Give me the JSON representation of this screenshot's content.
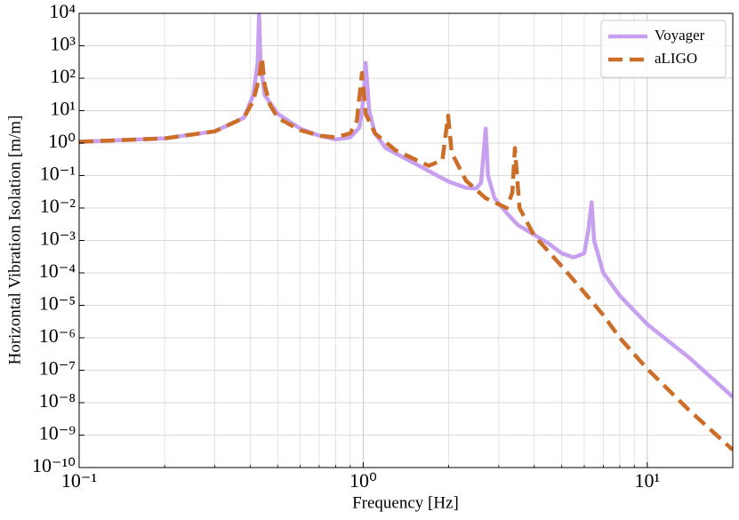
{
  "chart_data": {
    "type": "line",
    "xlabel": "Frequency [Hz]",
    "ylabel": "Horizontal Vibration Isolation [m/m]",
    "xscale": "log",
    "yscale": "log",
    "xlim": [
      0.1,
      20
    ],
    "ylim": [
      1e-10,
      10000
    ],
    "xticks": [
      {
        "value": 0.1,
        "label": "10⁻¹"
      },
      {
        "value": 1,
        "label": "10⁰"
      },
      {
        "value": 10,
        "label": "10¹"
      }
    ],
    "yticks": [
      {
        "value": 1e-10,
        "label": "10⁻¹⁰"
      },
      {
        "value": 1e-09,
        "label": "10⁻⁹"
      },
      {
        "value": 1e-08,
        "label": "10⁻⁸"
      },
      {
        "value": 1e-07,
        "label": "10⁻⁷"
      },
      {
        "value": 1e-06,
        "label": "10⁻⁶"
      },
      {
        "value": 1e-05,
        "label": "10⁻⁵"
      },
      {
        "value": 0.0001,
        "label": "10⁻⁴"
      },
      {
        "value": 0.001,
        "label": "10⁻³"
      },
      {
        "value": 0.01,
        "label": "10⁻²"
      },
      {
        "value": 0.1,
        "label": "10⁻¹"
      },
      {
        "value": 1,
        "label": "10⁰"
      },
      {
        "value": 10,
        "label": "10¹"
      },
      {
        "value": 100,
        "label": "10²"
      },
      {
        "value": 1000,
        "label": "10³"
      },
      {
        "value": 10000,
        "label": "10⁴"
      }
    ],
    "grid": true,
    "minor_grid_x": true,
    "legend": "upper right",
    "series": [
      {
        "name": "Voyager",
        "color": "#c8a0f0",
        "dashed": false,
        "x": [
          0.1,
          0.2,
          0.3,
          0.38,
          0.41,
          0.425,
          0.43,
          0.435,
          0.45,
          0.5,
          0.6,
          0.7,
          0.8,
          0.9,
          0.97,
          1.0,
          1.02,
          1.05,
          1.1,
          1.2,
          1.5,
          2.0,
          2.3,
          2.5,
          2.6,
          2.7,
          2.75,
          2.9,
          3.2,
          3.5,
          4,
          4.5,
          5,
          5.5,
          6,
          6.2,
          6.37,
          6.5,
          7,
          8,
          10,
          14,
          20
        ],
        "values": [
          1.1,
          1.4,
          2.3,
          6,
          30,
          300,
          10000,
          300,
          30,
          8,
          2.8,
          1.7,
          1.3,
          1.5,
          3,
          20,
          300,
          10,
          2,
          0.7,
          0.25,
          0.065,
          0.042,
          0.04,
          0.06,
          2.8,
          0.1,
          0.02,
          0.007,
          0.003,
          0.0015,
          0.0008,
          0.0004,
          0.0003,
          0.0004,
          0.002,
          0.015,
          0.001,
          0.0001,
          2e-05,
          2.6e-06,
          2.5e-07,
          1.5e-08
        ]
      },
      {
        "name": "aLIGO",
        "color": "#cd6e28",
        "dashed": true,
        "x": [
          0.1,
          0.2,
          0.3,
          0.38,
          0.41,
          0.43,
          0.44,
          0.45,
          0.47,
          0.5,
          0.6,
          0.7,
          0.8,
          0.9,
          0.95,
          0.99,
          1.02,
          1.1,
          1.3,
          1.7,
          1.9,
          1.99,
          2.05,
          2.3,
          2.7,
          3.2,
          3.35,
          3.42,
          3.55,
          4,
          5,
          6,
          7,
          8,
          10,
          14,
          20
        ],
        "values": [
          1.1,
          1.4,
          2.3,
          6,
          20,
          100,
          430,
          60,
          15,
          6,
          2.5,
          1.7,
          1.5,
          2,
          5,
          145,
          8,
          2,
          0.6,
          0.2,
          0.3,
          7,
          0.5,
          0.07,
          0.02,
          0.01,
          0.03,
          0.7,
          0.01,
          0.0014,
          0.00016,
          2.5e-05,
          5e-06,
          1e-06,
          1.1e-07,
          6e-09,
          3.5e-10
        ]
      }
    ]
  }
}
